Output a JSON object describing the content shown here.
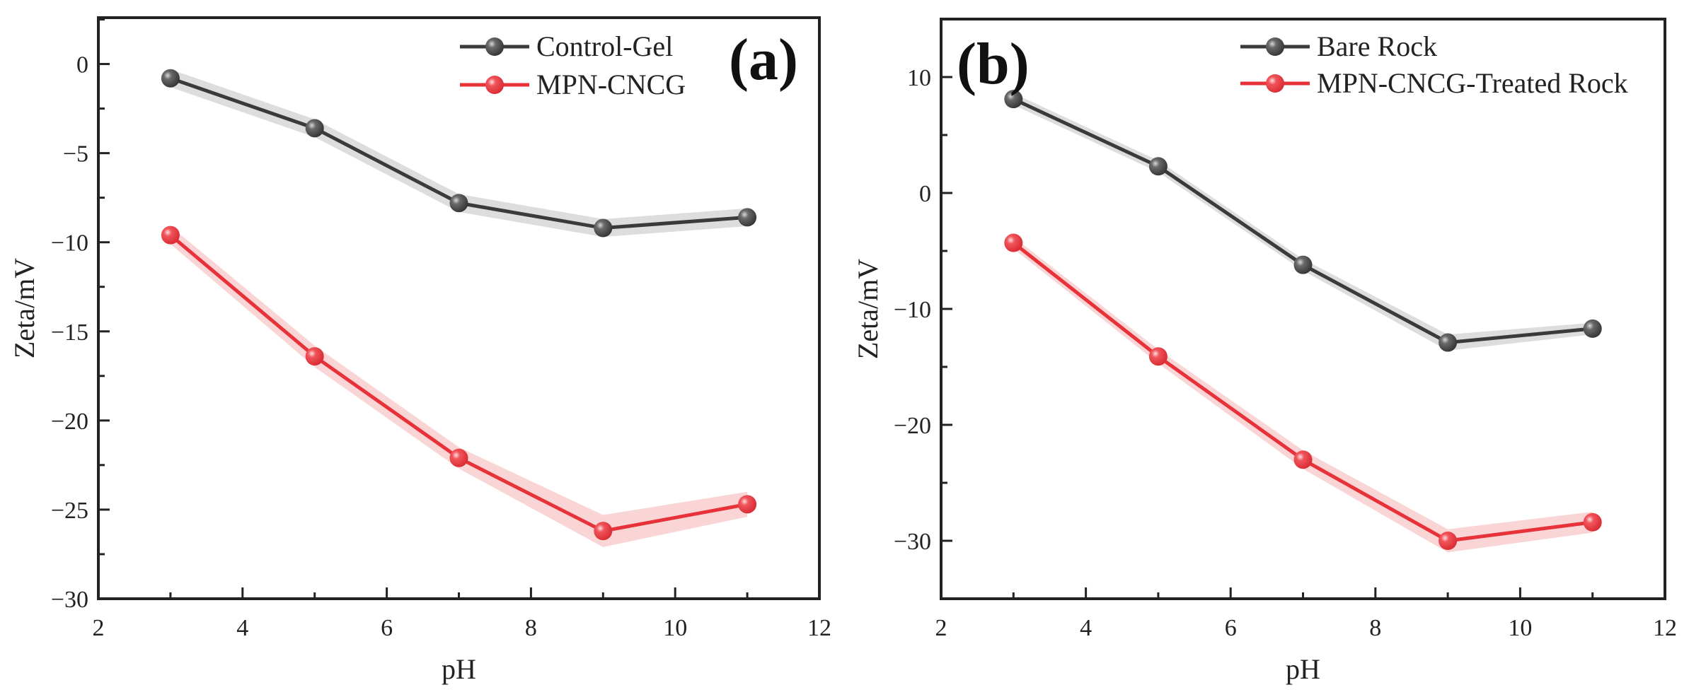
{
  "chart_data": [
    {
      "type": "line",
      "panel_label": "(a)",
      "xlabel": "pH",
      "ylabel": "Zeta/mV",
      "xlim": [
        2,
        12
      ],
      "ylim": [
        -30,
        2.6
      ],
      "xticks": [
        2,
        4,
        6,
        8,
        10,
        12
      ],
      "yticks": [
        0,
        -5,
        -10,
        -15,
        -20,
        -25,
        -30
      ],
      "ytick_labels": [
        "0",
        "−5",
        "−10",
        "−15",
        "−20",
        "−25",
        "−30"
      ],
      "x_minor_step": 1,
      "y_minor_step": 2.5,
      "grid": false,
      "legend_position": "top-right",
      "x": [
        3,
        5,
        7,
        9,
        11
      ],
      "series": [
        {
          "name": "Control-Gel",
          "values": [
            -0.8,
            -3.6,
            -7.8,
            -9.2,
            -8.6
          ],
          "error": [
            0.5,
            0.5,
            0.5,
            0.5,
            0.5
          ],
          "color": "#3a3a3a",
          "band_color": "#d9d9d9"
        },
        {
          "name": "MPN-CNCG",
          "values": [
            -9.6,
            -16.4,
            -22.1,
            -26.2,
            -24.7
          ],
          "error": [
            0.5,
            0.6,
            0.6,
            0.9,
            0.7
          ],
          "color": "#e8323a",
          "band_color": "#f9d0d2"
        }
      ]
    },
    {
      "type": "line",
      "panel_label": "(b)",
      "xlabel": "pH",
      "ylabel": "Zeta/mV",
      "xlim": [
        2,
        12
      ],
      "ylim": [
        -35,
        15
      ],
      "xticks": [
        2,
        4,
        6,
        8,
        10,
        12
      ],
      "yticks": [
        10,
        0,
        -10,
        -20,
        -30
      ],
      "ytick_labels": [
        "10",
        "0",
        "−10",
        "−20",
        "−30"
      ],
      "x_minor_step": 1,
      "y_minor_step": 5,
      "grid": false,
      "legend_position": "top-right",
      "x": [
        3,
        5,
        7,
        9,
        11
      ],
      "series": [
        {
          "name": "Bare Rock",
          "values": [
            8.1,
            2.3,
            -6.2,
            -12.9,
            -11.7
          ],
          "error": [
            0.5,
            0.5,
            0.5,
            0.7,
            0.5
          ],
          "color": "#3a3a3a",
          "band_color": "#d9d9d9"
        },
        {
          "name": "MPN-CNCG-Treated Rock",
          "values": [
            -4.3,
            -14.1,
            -23.0,
            -30.0,
            -28.4
          ],
          "error": [
            0.5,
            0.6,
            0.8,
            1.0,
            0.9
          ],
          "color": "#e8323a",
          "band_color": "#f9d0d2"
        }
      ]
    }
  ]
}
